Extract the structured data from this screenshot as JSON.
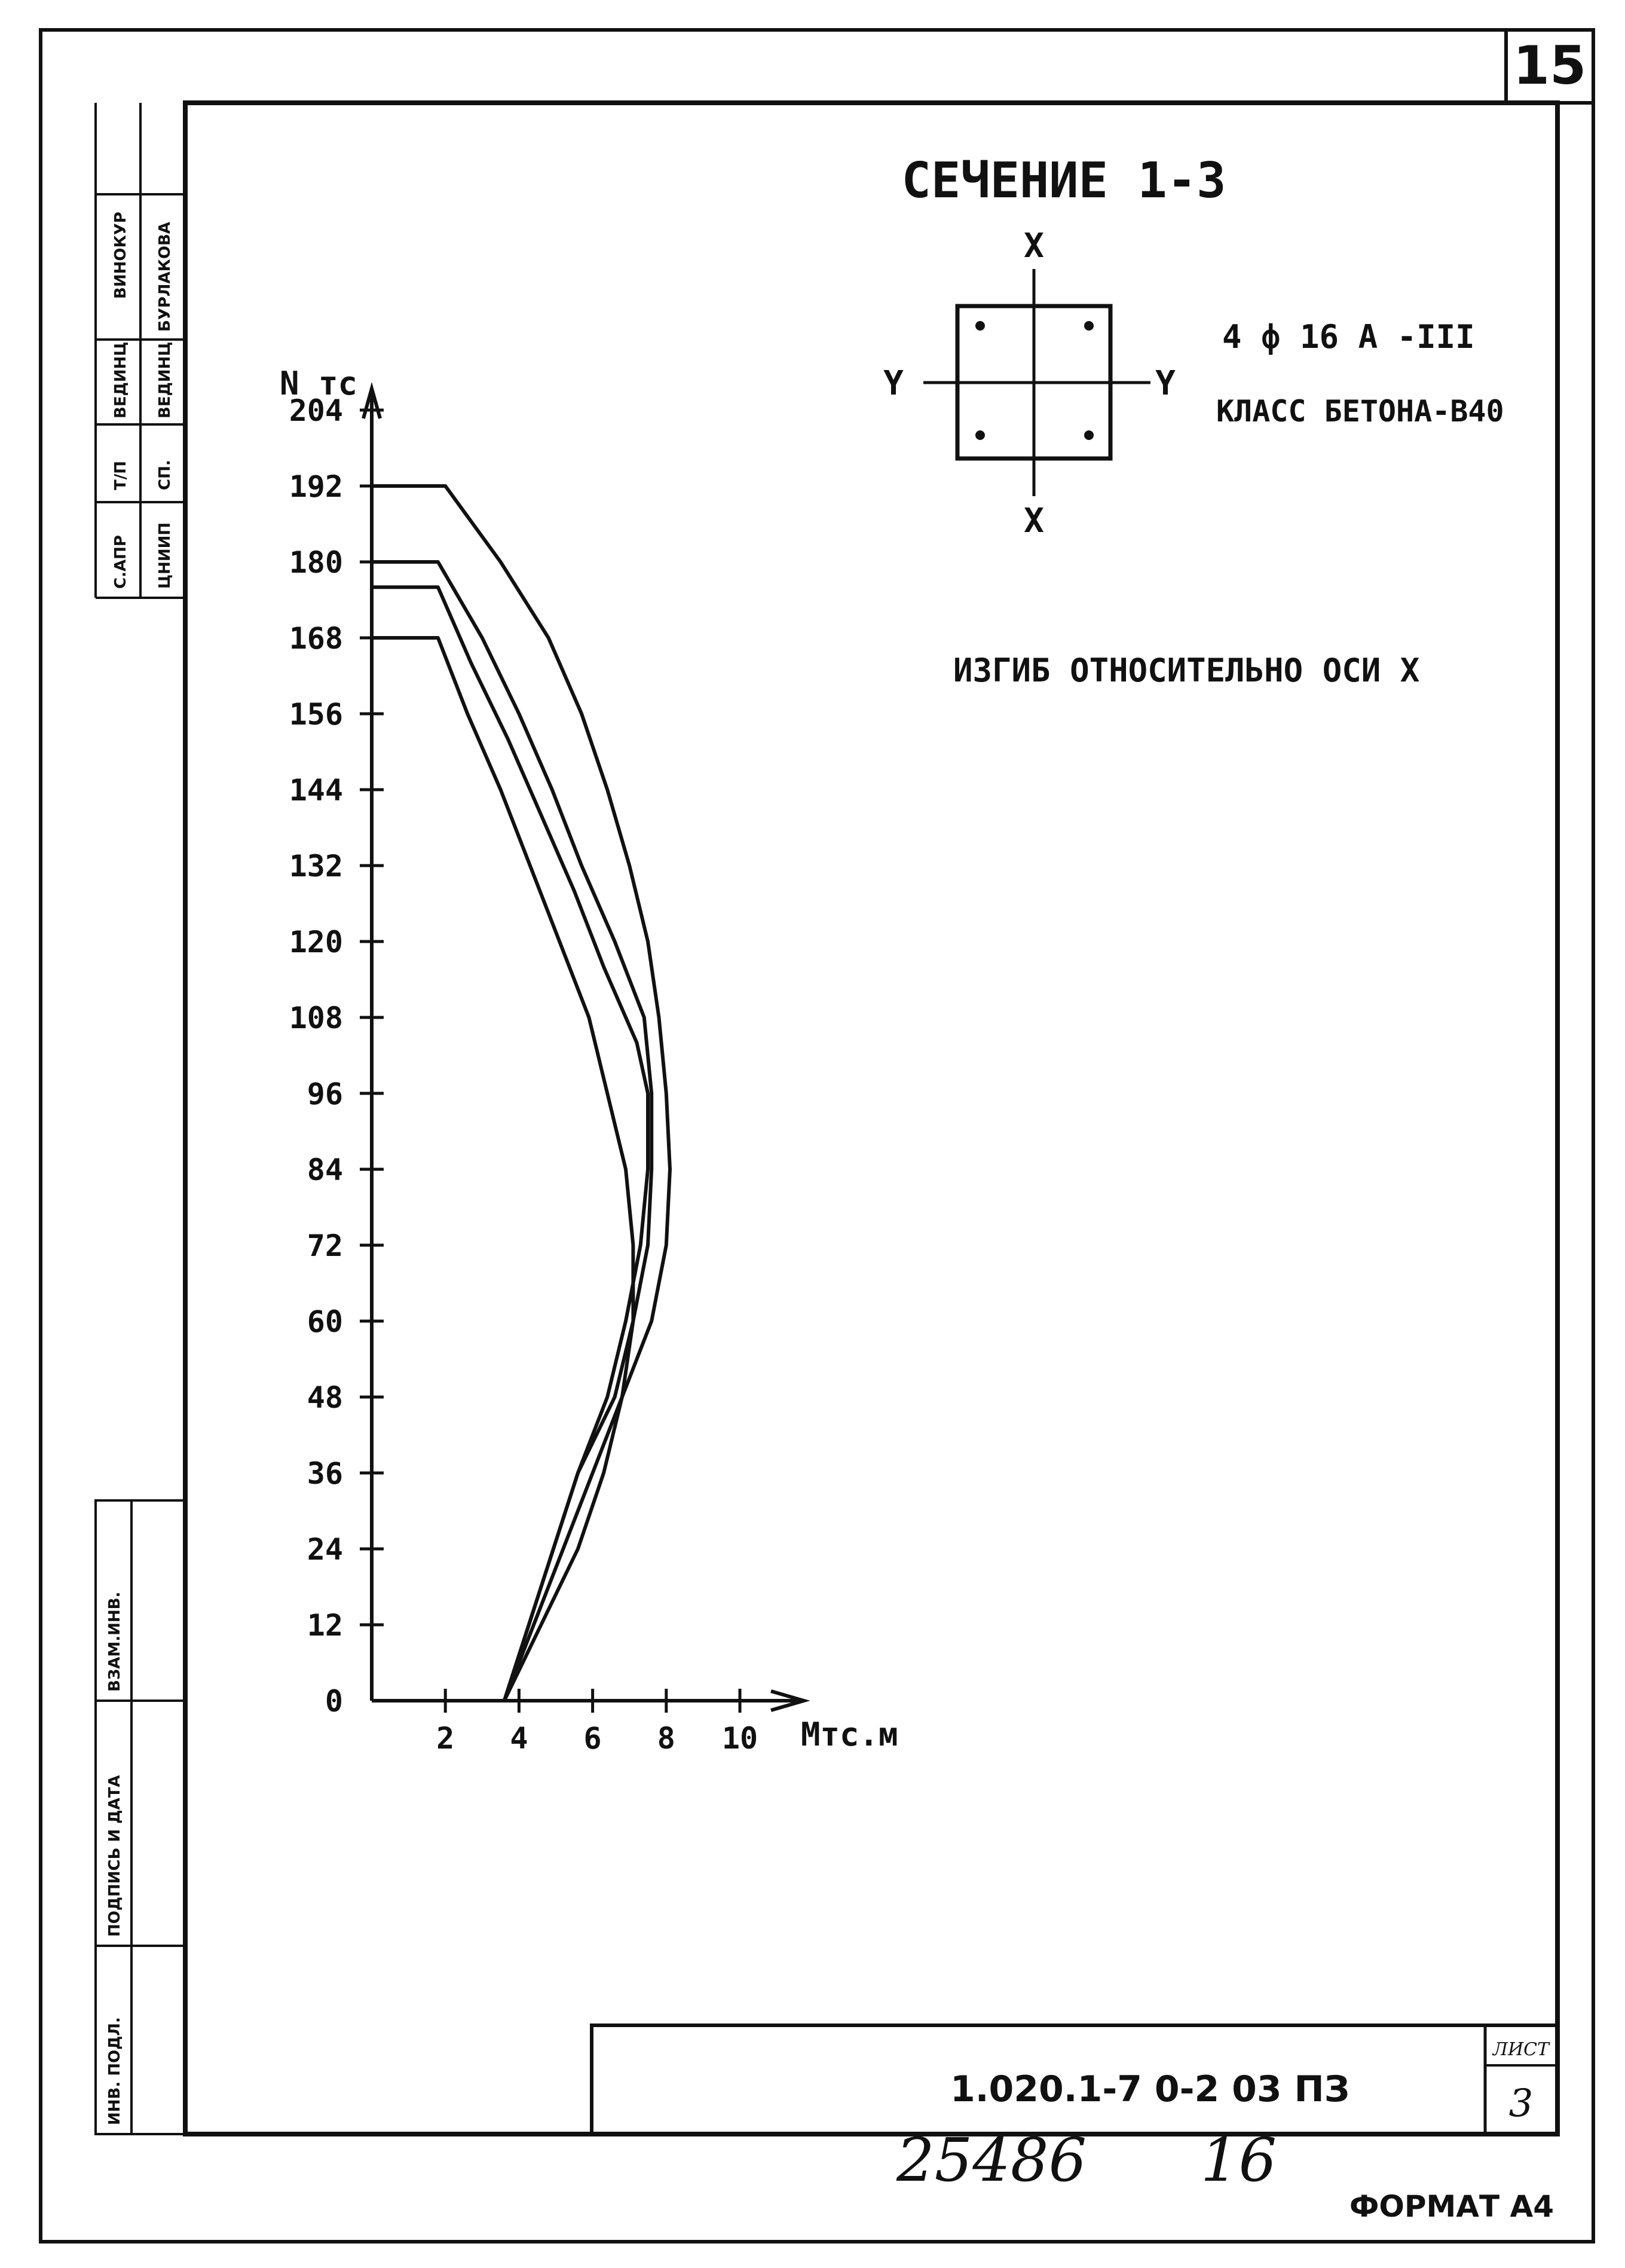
{
  "page": {
    "sheet_number": "15",
    "format_label": "ФОРМАТ А4",
    "handwritten_note": "25486      16"
  },
  "left_stamp": {
    "top_cells": [
      "ВИНОКУР",
      "БУРЛАКОВА",
      "ВЕДИНЦ",
      "ВЕДИНЦ",
      "Т/П",
      "СП.",
      "С.АПР",
      "ЦНИИП"
    ],
    "bottom_cells": [
      "ВЗАМ.ИНВ.",
      "ПОДПИСЬ И ДАТА",
      "ИНВ. ПОДЛ."
    ]
  },
  "section": {
    "title": "СЕЧЕНИЕ 1-3",
    "axis_x_label": "X",
    "axis_y_label": "Y",
    "reinforcement": "4 ф 16 А -III",
    "concrete_class": "КЛАСС БЕТОНА-В40",
    "bending_note": "ИЗГИБ ОТНОСИТЕЛЬНО ОСИ X"
  },
  "title_block": {
    "code": "1.020.1-7     0-2  03 ПЗ",
    "sheet_label": "ЛИСТ",
    "sheet_value": "3"
  },
  "chart_data": {
    "type": "line",
    "xlabel": "Мтс.м",
    "ylabel": "N тс",
    "xlim": [
      0,
      10
    ],
    "ylim": [
      0,
      204
    ],
    "x_ticks": [
      2,
      4,
      6,
      8,
      10
    ],
    "y_ticks": [
      0,
      12,
      24,
      36,
      48,
      60,
      72,
      84,
      96,
      108,
      120,
      132,
      144,
      156,
      168,
      180,
      192,
      204
    ],
    "grid": false,
    "series": [
      {
        "x": [
          0,
          2.0,
          3.5,
          4.8,
          5.7,
          6.4,
          7.0,
          7.5,
          7.8,
          8.0,
          8.1,
          8.0,
          7.6,
          6.8,
          5.6,
          4.4,
          3.6
        ],
        "y": [
          192,
          192,
          180,
          168,
          156,
          144,
          132,
          120,
          108,
          96,
          84,
          72,
          60,
          48,
          30,
          12,
          0
        ]
      },
      {
        "x": [
          0,
          1.8,
          3.0,
          4.0,
          4.9,
          5.7,
          6.6,
          7.4,
          7.6,
          7.6,
          7.5,
          7.1,
          6.6,
          5.6,
          4.6,
          3.6
        ],
        "y": [
          180,
          180,
          168,
          156,
          144,
          132,
          120,
          108,
          96,
          84,
          72,
          60,
          48,
          36,
          18,
          0
        ]
      },
      {
        "x": [
          0,
          1.8,
          2.7,
          3.7,
          4.6,
          5.5,
          6.3,
          7.2,
          7.5,
          7.5,
          7.3,
          6.9,
          6.4,
          5.6,
          4.6,
          3.6
        ],
        "y": [
          176,
          176,
          164,
          152,
          140,
          128,
          116,
          104,
          96,
          84,
          72,
          60,
          48,
          36,
          18,
          0
        ]
      },
      {
        "x": [
          0,
          1.8,
          2.6,
          3.5,
          4.3,
          5.1,
          5.9,
          6.4,
          6.9,
          7.1,
          7.1,
          6.8,
          6.3,
          5.6,
          4.6,
          3.6
        ],
        "y": [
          168,
          168,
          156,
          144,
          132,
          120,
          108,
          96,
          84,
          72,
          60,
          48,
          36,
          24,
          12,
          0
        ]
      }
    ]
  }
}
